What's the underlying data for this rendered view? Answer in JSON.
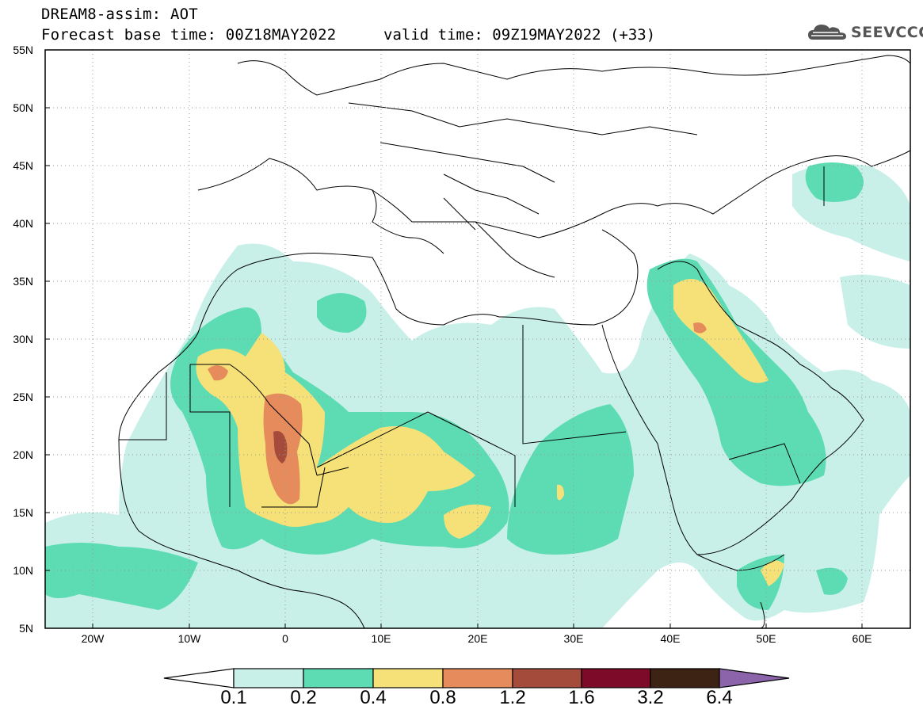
{
  "header": {
    "title": "DREAM8-assim: AOT",
    "base_time": "Forecast base time: 00Z18MAY2022",
    "valid_time": "valid time: 09Z19MAY2022 (+33)",
    "logo_text": "SEEVCCC"
  },
  "map": {
    "variable": "AOT",
    "lat_labels": [
      "55N",
      "50N",
      "45N",
      "40N",
      "35N",
      "30N",
      "25N",
      "20N",
      "15N",
      "10N",
      "5N"
    ],
    "lon_labels": [
      "20W",
      "10W",
      "0",
      "10E",
      "20E",
      "30E",
      "40E",
      "50E",
      "60E"
    ],
    "grid": "dotted"
  },
  "colorbar": {
    "levels": [
      "0.1",
      "0.2",
      "0.4",
      "0.8",
      "1.2",
      "1.6",
      "3.2",
      "6.4"
    ],
    "colors": [
      "#ffffff",
      "#c8f0e8",
      "#5ddcb4",
      "#f5e178",
      "#e68c5c",
      "#a54b3c",
      "#7d0a28",
      "#3c2314",
      "#8c64aa"
    ]
  }
}
